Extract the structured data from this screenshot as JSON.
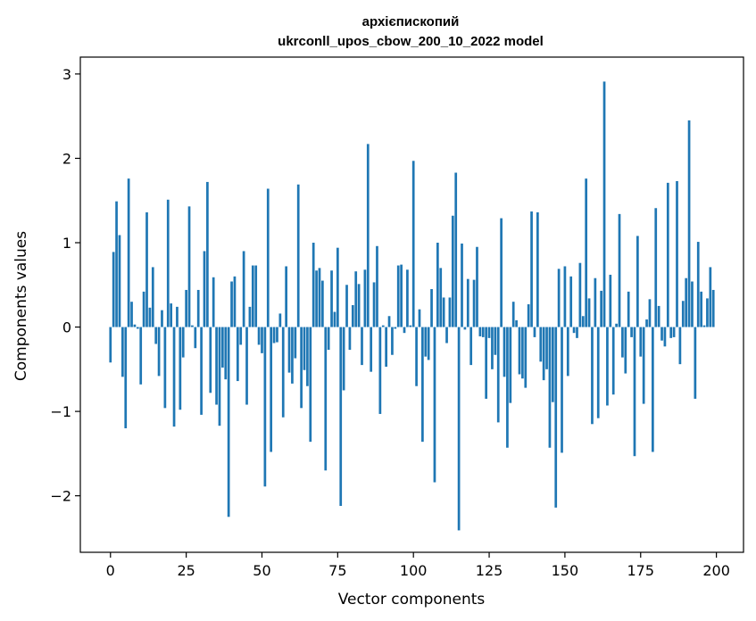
{
  "chart_data": {
    "type": "bar",
    "title_line1": "архієпископий",
    "title_line2": "ukrconll_upos_cbow_200_10_2022 model",
    "xlabel": "Vector components",
    "ylabel": "Components values",
    "xlim": [
      -9.95,
      208.95
    ],
    "ylim": [
      -2.67,
      3.2
    ],
    "xticks": [
      0,
      25,
      50,
      75,
      100,
      125,
      150,
      175,
      200
    ],
    "yticks": [
      -2,
      -1,
      0,
      1,
      2,
      3
    ],
    "xtick_labels": [
      "0",
      "25",
      "50",
      "75",
      "100",
      "125",
      "150",
      "175",
      "200"
    ],
    "ytick_labels": [
      "−2",
      "−1",
      "0",
      "1",
      "2",
      "3"
    ],
    "bar_color": "#1f77b4",
    "x": [
      0,
      1,
      2,
      3,
      4,
      5,
      6,
      7,
      8,
      9,
      10,
      11,
      12,
      13,
      14,
      15,
      16,
      17,
      18,
      19,
      20,
      21,
      22,
      23,
      24,
      25,
      26,
      27,
      28,
      29,
      30,
      31,
      32,
      33,
      34,
      35,
      36,
      37,
      38,
      39,
      40,
      41,
      42,
      43,
      44,
      45,
      46,
      47,
      48,
      49,
      50,
      51,
      52,
      53,
      54,
      55,
      56,
      57,
      58,
      59,
      60,
      61,
      62,
      63,
      64,
      65,
      66,
      67,
      68,
      69,
      70,
      71,
      72,
      73,
      74,
      75,
      76,
      77,
      78,
      79,
      80,
      81,
      82,
      83,
      84,
      85,
      86,
      87,
      88,
      89,
      90,
      91,
      92,
      93,
      94,
      95,
      96,
      97,
      98,
      99,
      100,
      101,
      102,
      103,
      104,
      105,
      106,
      107,
      108,
      109,
      110,
      111,
      112,
      113,
      114,
      115,
      116,
      117,
      118,
      119,
      120,
      121,
      122,
      123,
      124,
      125,
      126,
      127,
      128,
      129,
      130,
      131,
      132,
      133,
      134,
      135,
      136,
      137,
      138,
      139,
      140,
      141,
      142,
      143,
      144,
      145,
      146,
      147,
      148,
      149,
      150,
      151,
      152,
      153,
      154,
      155,
      156,
      157,
      158,
      159,
      160,
      161,
      162,
      163,
      164,
      165,
      166,
      167,
      168,
      169,
      170,
      171,
      172,
      173,
      174,
      175,
      176,
      177,
      178,
      179,
      180,
      181,
      182,
      183,
      184,
      185,
      186,
      187,
      188,
      189,
      190,
      191,
      192,
      193,
      194,
      195,
      196,
      197,
      198,
      199
    ],
    "values": [
      -0.42,
      0.89,
      1.49,
      1.09,
      -0.59,
      -1.2,
      1.76,
      0.3,
      0.03,
      -0.02,
      -0.68,
      0.42,
      1.36,
      0.23,
      0.71,
      -0.2,
      -0.58,
      0.2,
      -0.96,
      1.51,
      0.28,
      -1.18,
      0.24,
      -0.98,
      -0.36,
      0.44,
      1.43,
      0.02,
      -0.25,
      0.44,
      -1.04,
      0.9,
      1.72,
      -0.78,
      0.59,
      -0.92,
      -1.17,
      -0.48,
      -0.62,
      -2.25,
      0.54,
      0.6,
      -0.64,
      -0.21,
      0.9,
      -0.92,
      0.24,
      0.73,
      0.73,
      -0.21,
      -0.31,
      -1.89,
      1.64,
      -1.48,
      -0.19,
      -0.18,
      0.16,
      -1.07,
      0.72,
      -0.54,
      -0.67,
      -0.37,
      1.69,
      -0.96,
      -0.51,
      -0.7,
      -1.36,
      1.0,
      0.67,
      0.7,
      0.55,
      -1.7,
      -0.27,
      0.67,
      0.18,
      0.94,
      -2.12,
      -0.75,
      0.5,
      -0.27,
      0.26,
      0.66,
      0.51,
      -0.45,
      0.68,
      2.17,
      -0.53,
      0.53,
      0.96,
      -1.03,
      0.02,
      -0.47,
      0.13,
      -0.33,
      -0.02,
      0.73,
      0.74,
      -0.07,
      0.68,
      0.02,
      1.97,
      -0.7,
      0.21,
      -1.36,
      -0.35,
      -0.39,
      0.45,
      -1.84,
      1.0,
      0.7,
      0.35,
      -0.19,
      0.35,
      1.32,
      1.83,
      -2.41,
      0.99,
      -0.03,
      0.57,
      -0.45,
      0.56,
      0.95,
      -0.11,
      -0.12,
      -0.85,
      -0.13,
      -0.5,
      -0.33,
      -1.13,
      1.29,
      -0.59,
      -1.43,
      -0.9,
      0.3,
      0.08,
      -0.56,
      -0.61,
      -0.72,
      0.27,
      1.37,
      -0.12,
      1.36,
      -0.41,
      -0.63,
      -0.5,
      -1.43,
      -0.89,
      -2.14,
      0.69,
      -1.49,
      0.72,
      -0.58,
      0.6,
      -0.07,
      -0.13,
      0.76,
      0.13,
      1.76,
      0.34,
      -1.15,
      0.58,
      -1.08,
      0.43,
      2.91,
      -0.93,
      0.62,
      -0.8,
      0.04,
      1.34,
      -0.36,
      -0.55,
      0.42,
      -0.12,
      -1.53,
      1.08,
      -0.35,
      -0.91,
      0.09,
      0.33,
      -1.48,
      1.41,
      0.25,
      -0.16,
      -0.23,
      1.71,
      -0.13,
      -0.12,
      1.73,
      -0.44,
      0.31,
      0.58,
      2.45,
      0.54,
      -0.85,
      1.01,
      0.42,
      0.02,
      0.34,
      0.71,
      0.44
    ]
  }
}
